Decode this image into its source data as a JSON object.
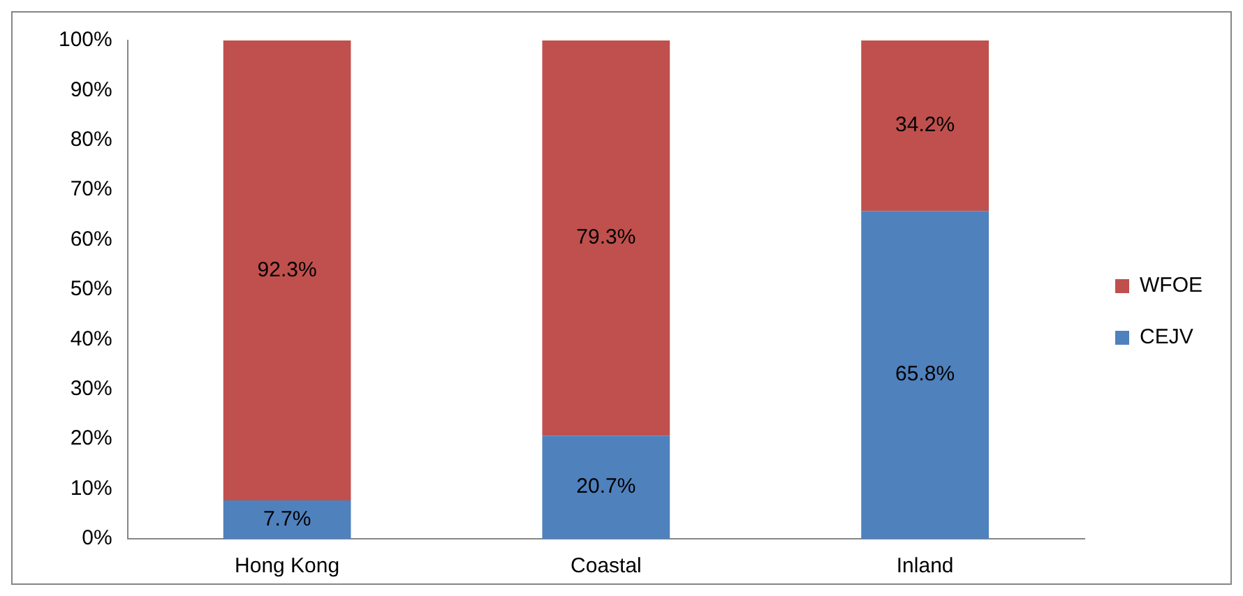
{
  "chart_data": {
    "type": "bar",
    "stacked": true,
    "categories": [
      "Hong Kong",
      "Coastal",
      "Inland"
    ],
    "series": [
      {
        "name": "CEJV",
        "color": "#4f81bd",
        "values": [
          7.7,
          20.7,
          65.8
        ],
        "value_labels": [
          "7.7%",
          "20.7%",
          "65.8%"
        ]
      },
      {
        "name": "WFOE",
        "color": "#c0504d",
        "values": [
          92.3,
          79.3,
          34.2
        ],
        "value_labels": [
          "92.3%",
          "79.3%",
          "34.2%"
        ]
      }
    ],
    "ylim": [
      0,
      100
    ],
    "yticks": [
      {
        "value": 0,
        "label": "0%"
      },
      {
        "value": 10,
        "label": "10%"
      },
      {
        "value": 20,
        "label": "20%"
      },
      {
        "value": 30,
        "label": "30%"
      },
      {
        "value": 40,
        "label": "40%"
      },
      {
        "value": 50,
        "label": "50%"
      },
      {
        "value": 60,
        "label": "60%"
      },
      {
        "value": 70,
        "label": "70%"
      },
      {
        "value": 80,
        "label": "80%"
      },
      {
        "value": 90,
        "label": "90%"
      },
      {
        "value": 100,
        "label": "100%"
      }
    ],
    "grid": false,
    "legend": "right"
  }
}
